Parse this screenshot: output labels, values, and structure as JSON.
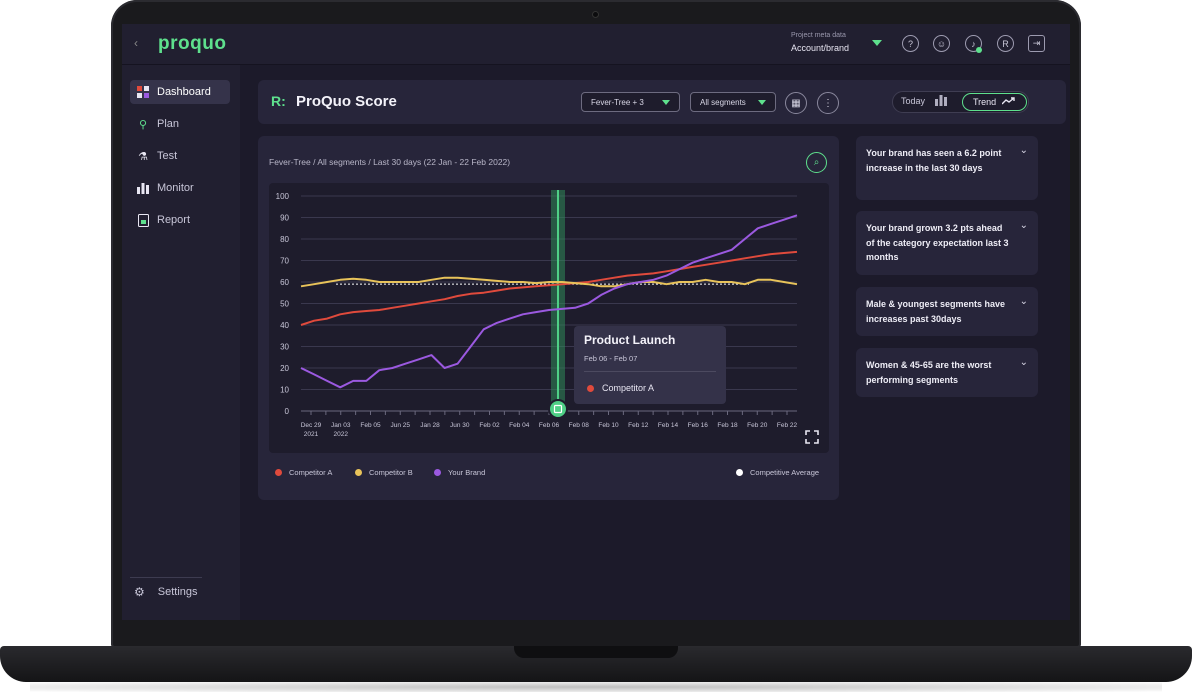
{
  "app": {
    "logo": "proquo",
    "back_symbol": "‹",
    "project_meta_label": "Project meta data",
    "project_meta_value": "Account/brand",
    "top_icons": [
      "help-icon",
      "user-icon",
      "notification-icon",
      "brand-icon",
      "logout-icon"
    ]
  },
  "sidebar": {
    "items": [
      {
        "label": "Dashboard",
        "icon": "dashboard-icon",
        "active": true
      },
      {
        "label": "Plan",
        "icon": "plan-icon",
        "active": false
      },
      {
        "label": "Test",
        "icon": "test-icon",
        "active": false
      },
      {
        "label": "Monitor",
        "icon": "monitor-icon",
        "active": false
      },
      {
        "label": "Report",
        "icon": "report-icon",
        "active": false
      }
    ],
    "settings_label": "Settings"
  },
  "header": {
    "title": "ProQuo Score",
    "brand_filter": "Fever-Tree + 3",
    "segment_filter": "All segments",
    "toggle_today": "Today",
    "toggle_trend": "Trend"
  },
  "chart_card": {
    "breadcrumb": "Fever-Tree / All segments / Last 30 days (22 Jan - 22 Feb 2022)",
    "tooltip": {
      "title": "Product Launch",
      "dates": "Feb 06 - Feb 07",
      "series": "Competitor A"
    },
    "legend_average": "Competitive Average"
  },
  "chart_data": {
    "type": "line",
    "x_labels": [
      "Dec 29\n2021",
      "Jan 03\n2022",
      "Feb 05",
      "Jun 25",
      "Jan 28",
      "Jun 30",
      "Feb 02",
      "Feb 04",
      "Feb 06",
      "Feb 08",
      "Feb 10",
      "Feb 12",
      "Feb 14",
      "Feb 16",
      "Feb 18",
      "Feb 20",
      "Feb 22"
    ],
    "yticks": [
      0,
      10,
      20,
      30,
      40,
      50,
      60,
      70,
      80,
      90,
      100
    ],
    "ylim": [
      0,
      100
    ],
    "grid": true,
    "highlight_label": "Product Launch",
    "average": 59,
    "series": [
      {
        "name": "Competitor A",
        "color": "#e04a3c",
        "values": [
          40,
          42,
          43,
          45,
          46,
          46.5,
          47,
          48,
          49,
          50,
          51,
          52,
          53.5,
          54.5,
          55,
          56,
          57,
          57.5,
          58,
          58.5,
          59,
          59.5,
          60,
          61,
          62,
          63,
          63.5,
          64,
          65,
          66,
          67,
          68,
          69,
          70,
          71,
          72,
          73,
          73.5,
          74
        ]
      },
      {
        "name": "Competitor B",
        "color": "#e8c35a",
        "values": [
          58,
          59,
          60,
          61,
          61.5,
          61,
          60,
          60,
          60,
          60,
          61,
          62,
          62,
          61.5,
          61,
          60.5,
          60,
          60,
          59.5,
          60,
          60,
          59.5,
          59,
          58,
          58,
          59,
          60,
          60,
          59,
          60,
          60,
          61,
          60,
          60,
          59,
          61,
          61,
          60,
          59
        ]
      },
      {
        "name": "Your Brand",
        "color": "#9b59e0",
        "values": [
          20,
          17,
          14,
          11,
          14,
          14,
          19,
          20,
          22,
          24,
          26,
          20,
          22,
          30,
          38,
          41,
          43,
          45,
          46,
          47,
          47.5,
          48,
          50,
          54,
          57,
          59,
          60,
          61,
          63,
          66,
          69,
          71,
          73,
          75,
          80,
          85,
          87,
          89,
          91
        ]
      }
    ]
  },
  "insights": [
    "Your brand has seen a 6.2 point increase in the last 30 days",
    "Your brand grown 3.2 pts ahead of the category expectation last 3 months",
    "Male & youngest segments have increases past 30days",
    "Women & 45-65 are the worst performing segments"
  ]
}
